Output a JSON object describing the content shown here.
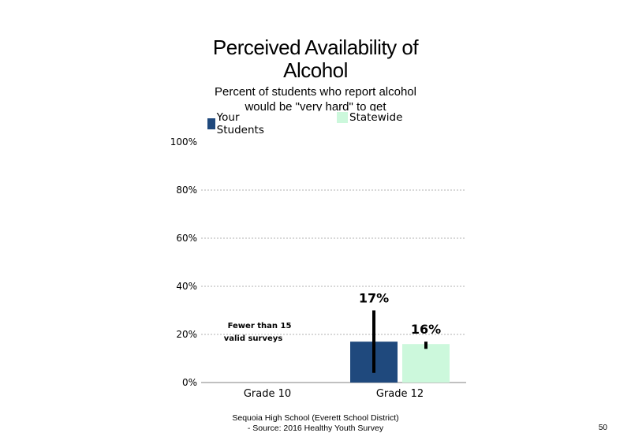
{
  "chart_data": {
    "type": "bar",
    "title_line1": "Perceived Availability of",
    "title_line2": "Alcohol",
    "subtitle_line1": "Percent of students  who report alcohol",
    "subtitle_line2": "would  be \"very hard\" to get",
    "categories": [
      "Grade 10",
      "Grade 12"
    ],
    "series": [
      {
        "name": "Your Students",
        "color": "#1f497d",
        "values": [
          null,
          17
        ],
        "error_low": [
          null,
          4
        ],
        "error_high": [
          null,
          30
        ],
        "labels": [
          "",
          "17%"
        ]
      },
      {
        "name": "Statewide",
        "color": "#ccf8dc",
        "values": [
          null,
          16
        ],
        "error_low": [
          null,
          14
        ],
        "error_high": [
          null,
          17
        ],
        "labels": [
          "",
          "16%"
        ]
      }
    ],
    "ylim": [
      0,
      100
    ],
    "yticks": [
      "0%",
      "20%",
      "40%",
      "60%",
      "80%",
      "100%"
    ],
    "ytick_values": [
      0,
      20,
      40,
      60,
      80,
      100
    ],
    "grid": true,
    "annotation": {
      "line1": "Fewer than 15",
      "line2": "valid surveys",
      "category": "Grade 10"
    }
  },
  "footer": {
    "line1": "Sequoia High School (Everett School District)",
    "line2": "- Source: 2016 Healthy  Youth Survey"
  },
  "page_number": "50"
}
